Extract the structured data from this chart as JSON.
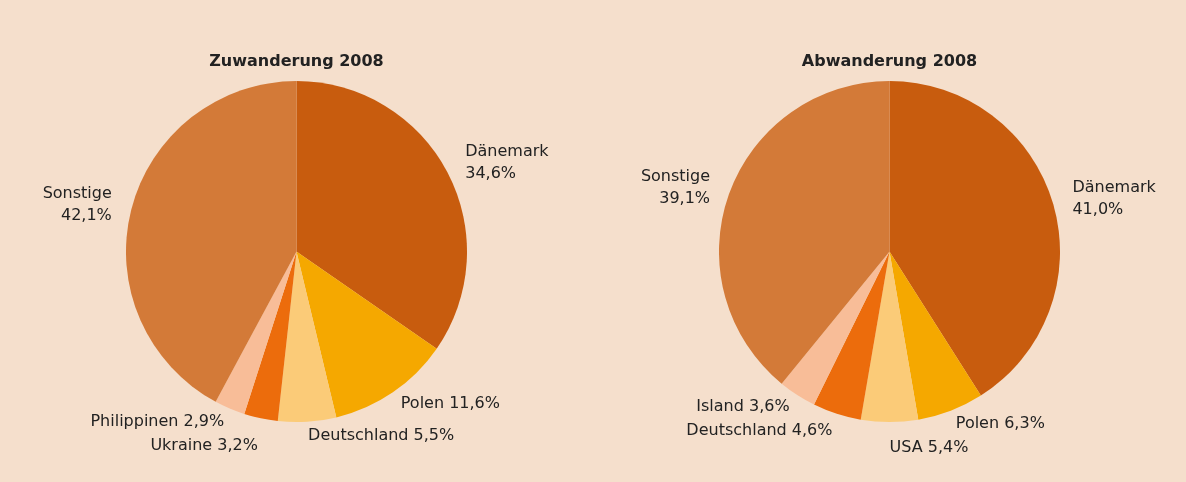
{
  "chart_data": [
    {
      "type": "pie",
      "title": "Zuwanderung 2008",
      "categories": [
        "Dänemark",
        "Polen",
        "Deutschland",
        "Ukraine",
        "Philippinen",
        "Sonstige"
      ],
      "values": [
        34.6,
        11.6,
        5.5,
        3.2,
        2.9,
        42.1
      ],
      "colors": [
        "#c85c0e",
        "#f5a800",
        "#fbcb78",
        "#ec6c0c",
        "#f8bd98",
        "#d37a38"
      ],
      "value_labels": [
        "34,6%",
        "11,6%",
        "5,5%",
        "3,2%",
        "2,9%",
        "42,1%"
      ],
      "legend": false
    },
    {
      "type": "pie",
      "title": "Abwanderung 2008",
      "categories": [
        "Dänemark",
        "Polen",
        "USA",
        "Deutschland",
        "Island",
        "Sonstige"
      ],
      "values": [
        41.0,
        6.3,
        5.4,
        4.6,
        3.6,
        39.1
      ],
      "colors": [
        "#c85c0e",
        "#f5a800",
        "#fbcb78",
        "#ec6c0c",
        "#f8bd98",
        "#d37a38"
      ],
      "value_labels": [
        "41,0%",
        "6,3%",
        "5,4%",
        "4,6%",
        "3,6%",
        "39,1%"
      ],
      "legend": false
    }
  ]
}
